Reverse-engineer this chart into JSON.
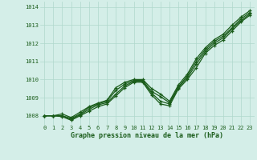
{
  "bg_color": "#d4eee8",
  "line_color": "#1a5c1a",
  "grid_color": "#b0d8cc",
  "text_color": "#1a5c1a",
  "xlabel": "Graphe pression niveau de la mer (hPa)",
  "ylim": [
    1007.5,
    1014.3
  ],
  "xlim": [
    -0.5,
    23.5
  ],
  "yticks": [
    1008,
    1009,
    1010,
    1011,
    1012,
    1013,
    1014
  ],
  "xticks": [
    0,
    1,
    2,
    3,
    4,
    5,
    6,
    7,
    8,
    9,
    10,
    11,
    12,
    13,
    14,
    15,
    16,
    17,
    18,
    19,
    20,
    21,
    22,
    23
  ],
  "series": [
    [
      1008.0,
      1008.0,
      1008.1,
      1007.9,
      1008.2,
      1008.5,
      1008.7,
      1008.85,
      1009.55,
      1009.85,
      1010.0,
      1010.0,
      1009.5,
      1009.2,
      1008.8,
      1009.7,
      1010.3,
      1011.15,
      1011.75,
      1012.2,
      1012.5,
      1013.0,
      1013.45,
      1013.8
    ],
    [
      1008.0,
      1008.0,
      1008.0,
      1007.85,
      1008.1,
      1008.45,
      1008.65,
      1008.8,
      1009.4,
      1009.75,
      1009.95,
      1009.95,
      1009.35,
      1009.05,
      1008.72,
      1009.6,
      1010.2,
      1011.0,
      1011.65,
      1012.1,
      1012.4,
      1012.85,
      1013.35,
      1013.7
    ],
    [
      1008.0,
      1008.0,
      1008.0,
      1007.8,
      1008.05,
      1008.35,
      1008.6,
      1008.72,
      1009.2,
      1009.65,
      1009.9,
      1009.9,
      1009.25,
      1008.8,
      1008.65,
      1009.55,
      1010.1,
      1010.85,
      1011.55,
      1012.0,
      1012.3,
      1012.8,
      1013.25,
      1013.62
    ],
    [
      1008.0,
      1008.0,
      1007.95,
      1007.75,
      1008.0,
      1008.25,
      1008.5,
      1008.65,
      1009.1,
      1009.55,
      1009.85,
      1009.85,
      1009.15,
      1008.65,
      1008.55,
      1009.48,
      1010.0,
      1010.65,
      1011.45,
      1011.88,
      1012.18,
      1012.68,
      1013.18,
      1013.55
    ]
  ]
}
